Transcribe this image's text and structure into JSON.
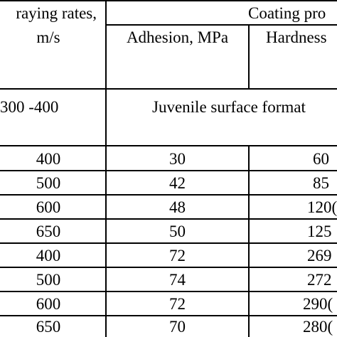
{
  "table": {
    "header": {
      "speed_line1": "raying rates,",
      "speed_line2": "m/s",
      "group": "Coating pro",
      "adhesion": "Adhesion, MPa",
      "hardness": "Hardness"
    },
    "juvenile_row": {
      "speed": "300 -400",
      "note": "Juvenile surface format"
    },
    "rows": [
      {
        "speed": "400",
        "adhesion": "30",
        "hardness": "60"
      },
      {
        "speed": "500",
        "adhesion": "42",
        "hardness": "85"
      },
      {
        "speed": "600",
        "adhesion": "48",
        "hardness": "120("
      },
      {
        "speed": "650",
        "adhesion": "50",
        "hardness": "125"
      },
      {
        "speed": "400",
        "adhesion": "72",
        "hardness": "269"
      },
      {
        "speed": "500",
        "adhesion": "74",
        "hardness": "272"
      },
      {
        "speed": "600",
        "adhesion": "72",
        "hardness": "290("
      },
      {
        "speed": "650",
        "adhesion": "70",
        "hardness": "280("
      }
    ]
  }
}
